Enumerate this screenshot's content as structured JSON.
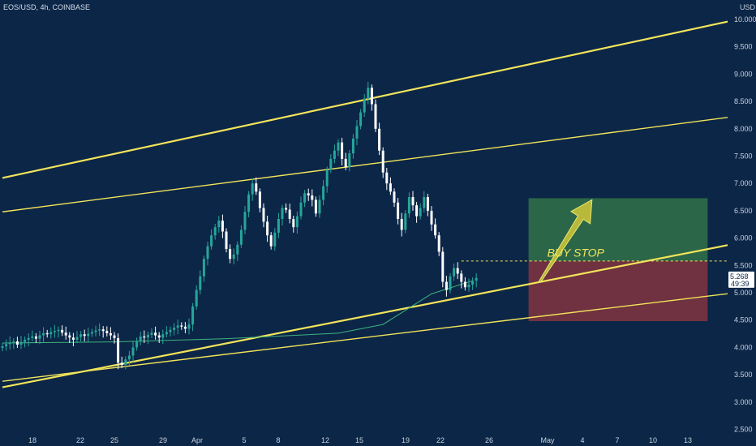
{
  "header": {
    "title": "EOS/USD, 4h, COINBASE"
  },
  "chart_data": {
    "type": "candlestick",
    "title": "EOS/USD, 4h, COINBASE",
    "currency_label": "USD",
    "y_ticks": [
      "10.000",
      "9.500",
      "9.000",
      "8.500",
      "8.000",
      "7.500",
      "7.000",
      "6.500",
      "6.000",
      "5.500",
      "5.000",
      "4.500",
      "4.000",
      "3.500",
      "3.000",
      "2.500"
    ],
    "x_tick_labels": [
      "18",
      "22",
      "25",
      "29",
      "Apr",
      "5",
      "8",
      "12",
      "15",
      "19",
      "22",
      "26",
      "May",
      "4",
      "7",
      "10",
      "13"
    ],
    "last_price": "5.268",
    "countdown": "49:39",
    "colors": {
      "background": "#0c2647",
      "up": "#26a69a",
      "down": "#ffffff",
      "trendline": "#f2e45a",
      "moving_average": "#3fb37f",
      "target_zone": "#2f6b49",
      "stop_zone": "#7a3340",
      "arrow": "#b8b83a"
    },
    "annotation": "BUY STOP",
    "close_series": [
      4.02,
      4.06,
      4.09,
      4.11,
      4.05,
      4.1,
      4.14,
      4.17,
      4.2,
      4.16,
      4.22,
      4.26,
      4.24,
      4.28,
      4.3,
      4.32,
      4.27,
      4.22,
      4.18,
      4.14,
      4.19,
      4.24,
      4.21,
      4.25,
      4.28,
      4.31,
      4.33,
      4.3,
      4.26,
      4.22,
      4.17,
      3.72,
      3.68,
      3.78,
      3.85,
      4.0,
      4.12,
      4.2,
      4.18,
      4.23,
      4.27,
      4.22,
      4.18,
      4.24,
      4.28,
      4.32,
      4.36,
      4.4,
      4.38,
      4.34,
      4.42,
      4.75,
      5.05,
      5.3,
      5.62,
      5.85,
      6.05,
      6.2,
      6.32,
      6.12,
      5.8,
      5.62,
      5.7,
      5.88,
      6.15,
      6.48,
      6.8,
      7.0,
      6.85,
      6.55,
      6.3,
      6.05,
      5.85,
      6.1,
      6.35,
      6.55,
      6.52,
      6.35,
      6.2,
      6.4,
      6.65,
      6.82,
      6.78,
      6.7,
      6.45,
      6.7,
      6.95,
      7.25,
      7.45,
      7.6,
      7.75,
      7.45,
      7.3,
      7.55,
      7.82,
      8.05,
      8.3,
      8.55,
      8.75,
      8.45,
      8.0,
      7.6,
      7.2,
      7.0,
      6.85,
      6.65,
      6.35,
      6.15,
      6.45,
      6.75,
      6.6,
      6.4,
      6.55,
      6.75,
      6.5,
      6.25,
      6.05,
      5.75,
      5.2,
      5.05,
      5.3,
      5.45,
      5.35,
      5.2,
      5.1,
      5.15,
      5.22,
      5.27
    ],
    "moving_average": [
      [
        0,
        4.08
      ],
      [
        30,
        4.1
      ],
      [
        60,
        4.16
      ],
      [
        90,
        4.26
      ],
      [
        102,
        4.42
      ],
      [
        115,
        4.98
      ],
      [
        126,
        5.22
      ]
    ],
    "trendlines": [
      {
        "name": "upper channel",
        "from": [
          0,
          7.1
        ],
        "to": [
          216,
          10.28
        ]
      },
      {
        "name": "mid channel",
        "from": [
          0,
          6.48
        ],
        "to": [
          216,
          8.4
        ]
      },
      {
        "name": "rising support",
        "from": [
          0,
          3.27
        ],
        "to": [
          216,
          6.16
        ]
      },
      {
        "name": "lower channel",
        "from": [
          0,
          3.38
        ],
        "to": [
          216,
          5.16
        ]
      }
    ],
    "breakout_level": 5.58,
    "zones": {
      "target": {
        "x_range": [
          141,
          189
        ],
        "y_range": [
          5.58,
          6.73
        ]
      },
      "stop": {
        "x_range": [
          141,
          189
        ],
        "y_range": [
          4.48,
          5.58
        ]
      }
    },
    "arrow": {
      "from": [
        144,
        5.2
      ],
      "to": [
        158,
        6.7
      ]
    }
  }
}
